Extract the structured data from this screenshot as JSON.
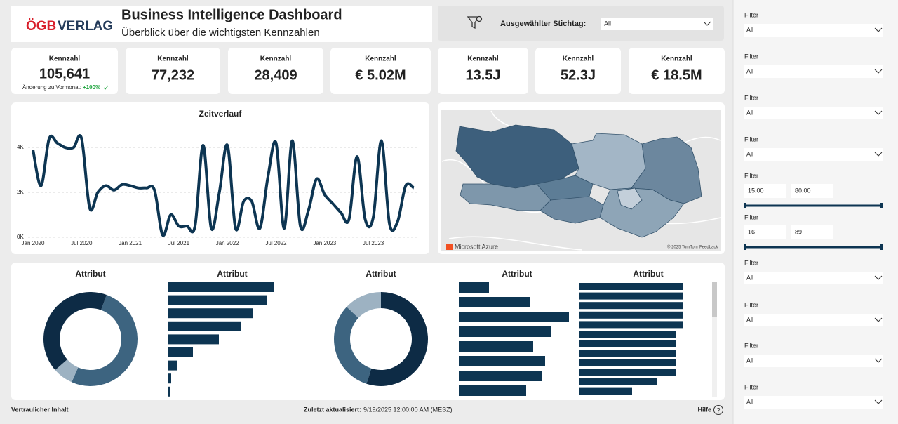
{
  "header": {
    "logo_left": "ÖGB",
    "logo_right": "VERLAG",
    "title": "Business Intelligence Dashboard",
    "subtitle": "Überblick über die wichtigsten Kennzahlen"
  },
  "stichtag": {
    "label": "Ausgewählter Stichtag:",
    "value": "All"
  },
  "kpis": [
    {
      "label": "Kennzahl",
      "value": "105,641"
    },
    {
      "label": "Kennzahl",
      "value": "77,232"
    },
    {
      "label": "Kennzahl",
      "value": "28,409"
    },
    {
      "label": "Kennzahl",
      "value": "€ 5.02M"
    },
    {
      "label": "Kennzahl",
      "value": "13.5J"
    },
    {
      "label": "Kennzahl",
      "value": "52.3J"
    },
    {
      "label": "Kennzahl",
      "value": "€ 18.5M"
    }
  ],
  "kpi_change": {
    "label": "Änderung zu Vormonat:",
    "value": "+100%"
  },
  "line_chart": {
    "type": "line",
    "title": "Zeitverlauf",
    "color": "#0d3552",
    "x": [
      "2020-01",
      "2020-02",
      "2020-03",
      "2020-04",
      "2020-05",
      "2020-06",
      "2020-07",
      "2020-08",
      "2020-09",
      "2020-10",
      "2020-11",
      "2020-12",
      "2021-01",
      "2021-02",
      "2021-03",
      "2021-04",
      "2021-05",
      "2021-06",
      "2021-07",
      "2021-08",
      "2021-09",
      "2021-10",
      "2021-11",
      "2021-12",
      "2022-01",
      "2022-02",
      "2022-03",
      "2022-04",
      "2022-05",
      "2022-06",
      "2022-07",
      "2022-08",
      "2022-09",
      "2022-10",
      "2022-11",
      "2022-12",
      "2023-01",
      "2023-02",
      "2023-03",
      "2023-04",
      "2023-05",
      "2023-06",
      "2023-07",
      "2023-08",
      "2023-09",
      "2023-10",
      "2023-11",
      "2023-12"
    ],
    "values": [
      3900,
      2300,
      4400,
      4200,
      4000,
      4000,
      4400,
      1300,
      2000,
      2300,
      2100,
      2350,
      2300,
      2200,
      2200,
      2100,
      100,
      1000,
      500,
      500,
      500,
      4100,
      400,
      2000,
      4100,
      400,
      1600,
      1600,
      400,
      2700,
      4200,
      400,
      4300,
      500,
      1200,
      2600,
      1900,
      1500,
      1100,
      800,
      3600,
      800,
      900,
      4300,
      600,
      700,
      2300,
      2200
    ],
    "ylim": [
      0,
      4600
    ],
    "yticks": [
      {
        "value": 0,
        "label": "0K"
      },
      {
        "value": 2000,
        "label": "2K"
      },
      {
        "value": 4000,
        "label": "4K"
      }
    ],
    "xticks": [
      {
        "value": "2020-01",
        "label": "Jan 2020"
      },
      {
        "value": "2020-07",
        "label": "Jul 2020"
      },
      {
        "value": "2021-01",
        "label": "Jan 2021"
      },
      {
        "value": "2021-07",
        "label": "Jul 2021"
      },
      {
        "value": "2022-01",
        "label": "Jan 2022"
      },
      {
        "value": "2022-07",
        "label": "Jul 2022"
      },
      {
        "value": "2023-01",
        "label": "Jan 2023"
      },
      {
        "value": "2023-07",
        "label": "Jul 2023"
      }
    ],
    "grid": true
  },
  "map": {
    "attribution": "Microsoft Azure",
    "copyright": "© 2025 TomTom",
    "feedback": "Feedback"
  },
  "attribute_charts": [
    {
      "type": "pie",
      "title": "Attribut",
      "values": [
        51,
        7,
        42
      ],
      "colors": [
        "#3d6480",
        "#9db2c2",
        "#0d2b45"
      ]
    },
    {
      "type": "bar",
      "title": "Attribut",
      "values": [
        150,
        141,
        121,
        103,
        72,
        35,
        12,
        4,
        3
      ],
      "color": "#0d3552"
    },
    {
      "type": "pie",
      "title": "Attribut",
      "values": [
        55,
        32,
        13
      ],
      "colors": [
        "#0d2b45",
        "#3d6480",
        "#9db2c2"
      ]
    },
    {
      "type": "bar",
      "title": "Attribut",
      "values": [
        43,
        101,
        157,
        132,
        106,
        123,
        119,
        96
      ],
      "color": "#0d3552"
    },
    {
      "type": "bar",
      "title": "Attribut",
      "values": [
        148,
        148,
        148,
        148,
        148,
        137,
        137,
        137,
        137,
        137,
        111,
        75
      ],
      "color": "#0d3552"
    }
  ],
  "filters": [
    {
      "label": "Filter",
      "value": "All"
    },
    {
      "label": "Filter",
      "value": "All"
    },
    {
      "label": "Filter",
      "value": "All"
    },
    {
      "label": "Filter",
      "value": "All"
    },
    {
      "label": "Filter",
      "min": "15.00",
      "max": "80.00"
    },
    {
      "label": "Filter",
      "min": "16",
      "max": "89"
    },
    {
      "label": "Filter",
      "value": "All"
    },
    {
      "label": "Filter",
      "value": "All"
    },
    {
      "label": "Filter",
      "value": "All"
    },
    {
      "label": "Filter",
      "value": "All"
    }
  ],
  "footer": {
    "confidential": "Vertraulicher Inhalt",
    "updated_label": "Zuletzt aktualisiert:",
    "updated_value": "9/19/2025 12:00:00 AM (MESZ)",
    "help": "Hilfe"
  }
}
